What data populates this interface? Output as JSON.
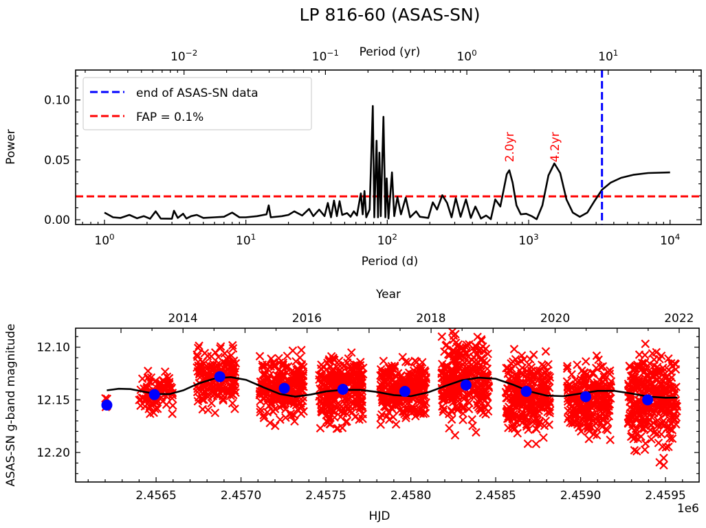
{
  "chart_data": [
    {
      "type": "line",
      "title": "LP 816-60 (ASAS-SN)",
      "xlabel": "Period (d)",
      "ylabel": "Power",
      "xscale": "log",
      "xlim": [
        0.625,
        16600
      ],
      "ylim": [
        -0.004,
        0.125
      ],
      "xticks": [
        {
          "value": 1,
          "label": "10^0"
        },
        {
          "value": 10,
          "label": "10^1"
        },
        {
          "value": 100,
          "label": "10^2"
        },
        {
          "value": 1000,
          "label": "10^3"
        },
        {
          "value": 10000,
          "label": "10^4"
        }
      ],
      "yticks": [
        {
          "value": 0.0,
          "label": "0.00"
        },
        {
          "value": 0.05,
          "label": "0.05"
        },
        {
          "value": 0.1,
          "label": "0.10"
        }
      ],
      "secondary_xaxis": {
        "label": "Period (yr)",
        "ticks": [
          {
            "value": 0.01,
            "label": "10^-2"
          },
          {
            "value": 0.1,
            "label": "10^-1"
          },
          {
            "value": 1,
            "label": "10^0"
          },
          {
            "value": 10,
            "label": "10^1"
          }
        ]
      },
      "series": [
        {
          "name": "periodogram",
          "color": "#000000",
          "points": [
            [
              1.0,
              0.006
            ],
            [
              1.15,
              0.002
            ],
            [
              1.3,
              0.0015
            ],
            [
              1.5,
              0.004
            ],
            [
              1.7,
              0.0012
            ],
            [
              1.9,
              0.003
            ],
            [
              2.1,
              0.0008
            ],
            [
              2.3,
              0.007
            ],
            [
              2.5,
              0.001
            ],
            [
              3.0,
              0.0008
            ],
            [
              3.1,
              0.0075
            ],
            [
              3.3,
              0.0015
            ],
            [
              3.6,
              0.005
            ],
            [
              3.8,
              0.001
            ],
            [
              4.1,
              0.003
            ],
            [
              4.5,
              0.004
            ],
            [
              5,
              0.0015
            ],
            [
              6,
              0.002
            ],
            [
              7,
              0.0025
            ],
            [
              8,
              0.006
            ],
            [
              9,
              0.002
            ],
            [
              10,
              0.002
            ],
            [
              12,
              0.003
            ],
            [
              14,
              0.0045
            ],
            [
              14.5,
              0.012
            ],
            [
              15,
              0.002
            ],
            [
              18,
              0.003
            ],
            [
              20,
              0.004
            ],
            [
              22,
              0.007
            ],
            [
              25,
              0.0035
            ],
            [
              28,
              0.009
            ],
            [
              30,
              0.003
            ],
            [
              33,
              0.0085
            ],
            [
              36,
              0.003
            ],
            [
              38,
              0.014
            ],
            [
              40,
              0.002
            ],
            [
              42,
              0.016
            ],
            [
              44,
              0.003
            ],
            [
              46,
              0.0155
            ],
            [
              48,
              0.004
            ],
            [
              52,
              0.0055
            ],
            [
              55,
              0.0025
            ],
            [
              58,
              0.007
            ],
            [
              61,
              0.0035
            ],
            [
              65,
              0.022
            ],
            [
              67,
              0.0045
            ],
            [
              69,
              0.024
            ],
            [
              71,
              0.002
            ],
            [
              75,
              0.0085
            ],
            [
              79,
              0.095
            ],
            [
              81,
              0.002
            ],
            [
              84,
              0.066
            ],
            [
              86,
              0.002
            ],
            [
              88,
              0.056
            ],
            [
              90,
              0.003
            ],
            [
              94,
              0.086
            ],
            [
              97,
              0.002
            ],
            [
              99,
              0.0345
            ],
            [
              102,
              0.001
            ],
            [
              108,
              0.0395
            ],
            [
              112,
              0.003
            ],
            [
              118,
              0.019
            ],
            [
              125,
              0.0045
            ],
            [
              135,
              0.0185
            ],
            [
              145,
              0.002
            ],
            [
              160,
              0.007
            ],
            [
              170,
              0.0025
            ],
            [
              195,
              0.0015
            ],
            [
              210,
              0.0145
            ],
            [
              225,
              0.0085
            ],
            [
              245,
              0.0205
            ],
            [
              265,
              0.014
            ],
            [
              285,
              0.002
            ],
            [
              305,
              0.018
            ],
            [
              330,
              0.0025
            ],
            [
              360,
              0.017
            ],
            [
              390,
              0.0015
            ],
            [
              420,
              0.011
            ],
            [
              460,
              0.001
            ],
            [
              500,
              0.0035
            ],
            [
              540,
              0.0005
            ],
            [
              580,
              0.017
            ],
            [
              630,
              0.011
            ],
            [
              700,
              0.038
            ],
            [
              730,
              0.0413
            ],
            [
              770,
              0.031
            ],
            [
              820,
              0.012
            ],
            [
              880,
              0.0045
            ],
            [
              960,
              0.005
            ],
            [
              1050,
              0.003
            ],
            [
              1140,
              0.0005
            ],
            [
              1250,
              0.012
            ],
            [
              1380,
              0.037
            ],
            [
              1520,
              0.047
            ],
            [
              1670,
              0.039
            ],
            [
              1850,
              0.017
            ],
            [
              2050,
              0.006
            ],
            [
              2300,
              0.0025
            ],
            [
              2600,
              0.006
            ],
            [
              2900,
              0.015
            ],
            [
              3300,
              0.025
            ],
            [
              3800,
              0.031
            ],
            [
              4500,
              0.035
            ],
            [
              5500,
              0.0375
            ],
            [
              7000,
              0.039
            ],
            [
              10000,
              0.0395
            ]
          ]
        }
      ],
      "reference_lines": [
        {
          "orientation": "vertical",
          "value": 3300,
          "style": "dashed",
          "color": "#0000ff",
          "legend": "end of ASAS-SN data"
        },
        {
          "orientation": "horizontal",
          "value": 0.0195,
          "style": "dashed",
          "color": "#ff0000",
          "legend": "FAP = 0.1%"
        }
      ],
      "legend_position": "upper-left",
      "annotations": [
        {
          "text": "2.0yr",
          "x": 730,
          "y": 0.048,
          "color": "#ff0000",
          "rotation": 90
        },
        {
          "text": "4.2yr",
          "x": 1530,
          "y": 0.048,
          "color": "#ff0000",
          "rotation": 90
        }
      ]
    },
    {
      "type": "scatter",
      "xlabel": "HJD",
      "x_offset_label": "1e6",
      "ylabel": "ASAS-SN g-band magnitude",
      "xlim": [
        2456026,
        2459698
      ],
      "ylim": [
        12.228,
        12.082
      ],
      "y_inverted": true,
      "xticks": [
        {
          "value": 2456500,
          "label": "2.4565"
        },
        {
          "value": 2457000,
          "label": "2.4570"
        },
        {
          "value": 2457500,
          "label": "2.4575"
        },
        {
          "value": 2458000,
          "label": "2.4580"
        },
        {
          "value": 2458500,
          "label": "2.4585"
        },
        {
          "value": 2459000,
          "label": "2.4590"
        },
        {
          "value": 2459500,
          "label": "2.4595"
        }
      ],
      "yticks": [
        {
          "value": 12.1,
          "label": "12.10"
        },
        {
          "value": 12.15,
          "label": "12.15"
        },
        {
          "value": 12.2,
          "label": "12.20"
        }
      ],
      "secondary_xaxis": {
        "label": "Year",
        "ticks": [
          {
            "value": 2456658,
            "label": "2014"
          },
          {
            "value": 2457388,
            "label": "2016"
          },
          {
            "value": 2458119,
            "label": "2018"
          },
          {
            "value": 2458850,
            "label": "2020"
          },
          {
            "value": 2459580,
            "label": "2022"
          }
        ]
      },
      "series": [
        {
          "name": "observations",
          "marker": "x",
          "color": "#ff0000",
          "seasons": [
            {
              "start": 2456200,
              "end": 2456215,
              "center": 12.15,
              "spread": 0.01,
              "count": 5
            },
            {
              "start": 2456400,
              "end": 2456600,
              "center": 12.143,
              "spread": 0.016,
              "count": 90
            },
            {
              "start": 2456740,
              "end": 2456970,
              "center": 12.13,
              "spread": 0.025,
              "count": 180
            },
            {
              "start": 2457110,
              "end": 2457370,
              "center": 12.138,
              "spread": 0.025,
              "count": 260
            },
            {
              "start": 2457460,
              "end": 2457720,
              "center": 12.14,
              "spread": 0.027,
              "count": 280
            },
            {
              "start": 2457820,
              "end": 2458090,
              "center": 12.142,
              "spread": 0.025,
              "count": 280
            },
            {
              "start": 2458180,
              "end": 2458460,
              "center": 12.132,
              "spread": 0.032,
              "count": 320
            },
            {
              "start": 2458560,
              "end": 2458820,
              "center": 12.145,
              "spread": 0.03,
              "count": 300
            },
            {
              "start": 2458920,
              "end": 2459180,
              "center": 12.15,
              "spread": 0.03,
              "count": 260
            },
            {
              "start": 2459280,
              "end": 2459570,
              "center": 12.152,
              "spread": 0.038,
              "count": 340
            }
          ]
        },
        {
          "name": "seasonal means",
          "marker": "o",
          "color": "#0000ff",
          "points": [
            [
              2456210,
              12.155
            ],
            [
              2456490,
              12.145
            ],
            [
              2456875,
              12.128
            ],
            [
              2457255,
              12.139
            ],
            [
              2457600,
              12.14
            ],
            [
              2457965,
              12.142
            ],
            [
              2458325,
              12.136
            ],
            [
              2458680,
              12.142
            ],
            [
              2459030,
              12.147
            ],
            [
              2459395,
              12.15
            ]
          ]
        },
        {
          "name": "fit",
          "marker": "line",
          "color": "#000000",
          "points": [
            [
              2456210,
              12.141
            ],
            [
              2456280,
              12.1395
            ],
            [
              2456350,
              12.1398
            ],
            [
              2456420,
              12.142
            ],
            [
              2456500,
              12.1445
            ],
            [
              2456580,
              12.1445
            ],
            [
              2456660,
              12.141
            ],
            [
              2456750,
              12.1345
            ],
            [
              2456850,
              12.1295
            ],
            [
              2456940,
              12.1285
            ],
            [
              2457030,
              12.131
            ],
            [
              2457130,
              12.138
            ],
            [
              2457230,
              12.1445
            ],
            [
              2457320,
              12.147
            ],
            [
              2457410,
              12.145
            ],
            [
              2457500,
              12.142
            ],
            [
              2457600,
              12.1405
            ],
            [
              2457700,
              12.1405
            ],
            [
              2457800,
              12.1425
            ],
            [
              2457900,
              12.1455
            ],
            [
              2458000,
              12.1465
            ],
            [
              2458100,
              12.143
            ],
            [
              2458200,
              12.137
            ],
            [
              2458300,
              12.1315
            ],
            [
              2458400,
              12.129
            ],
            [
              2458500,
              12.13
            ],
            [
              2458600,
              12.1355
            ],
            [
              2458700,
              12.142
            ],
            [
              2458800,
              12.146
            ],
            [
              2458900,
              12.1465
            ],
            [
              2459000,
              12.144
            ],
            [
              2459100,
              12.1415
            ],
            [
              2459200,
              12.1415
            ],
            [
              2459300,
              12.144
            ],
            [
              2459400,
              12.147
            ],
            [
              2459500,
              12.148
            ],
            [
              2459570,
              12.1478
            ]
          ]
        }
      ]
    }
  ]
}
